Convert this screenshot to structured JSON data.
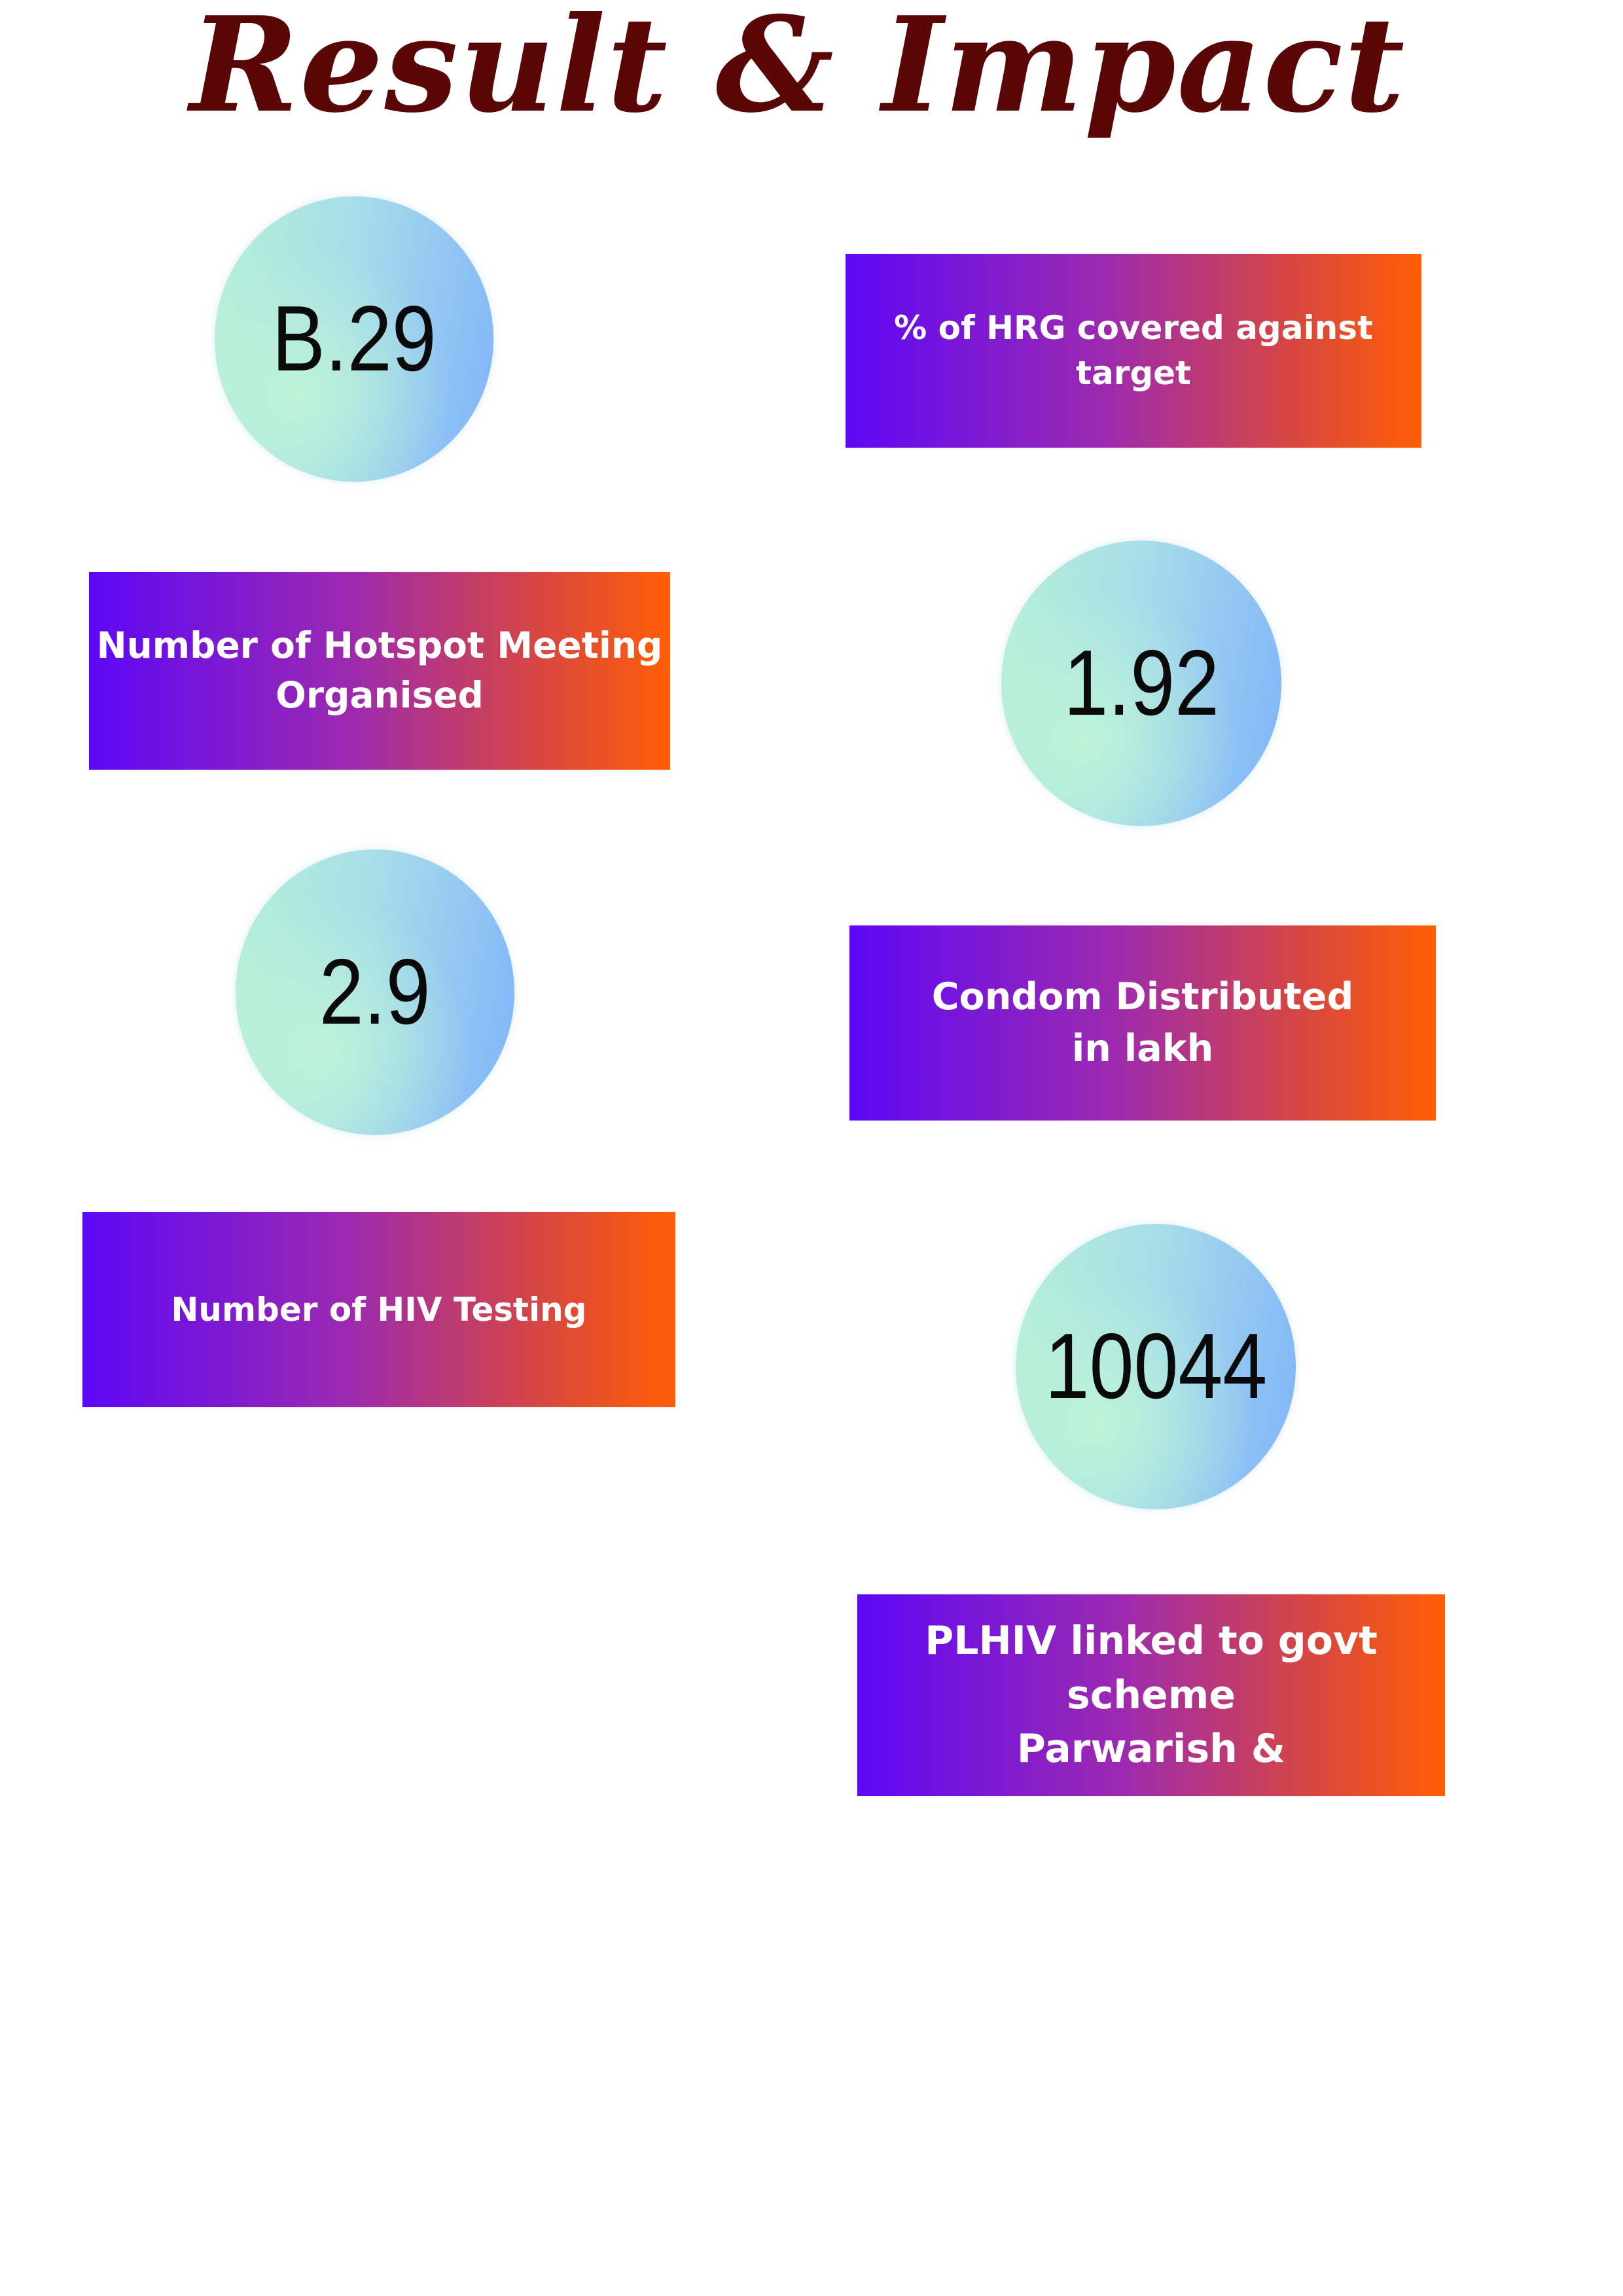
{
  "title": "Result & Impact",
  "items": [
    {
      "value": "B.29",
      "label": "% of HRG covered against\ntarget"
    },
    {
      "value": "1.92",
      "label": "Number of Hotspot Meeting\nOrganised"
    },
    {
      "value": "2.9",
      "label": "Condom Distributed\nin lakh"
    },
    {
      "value": "10044",
      "label": "Number of HIV Testing"
    },
    {
      "label": "PLHIV linked to govt scheme\nParwarish &"
    }
  ]
}
